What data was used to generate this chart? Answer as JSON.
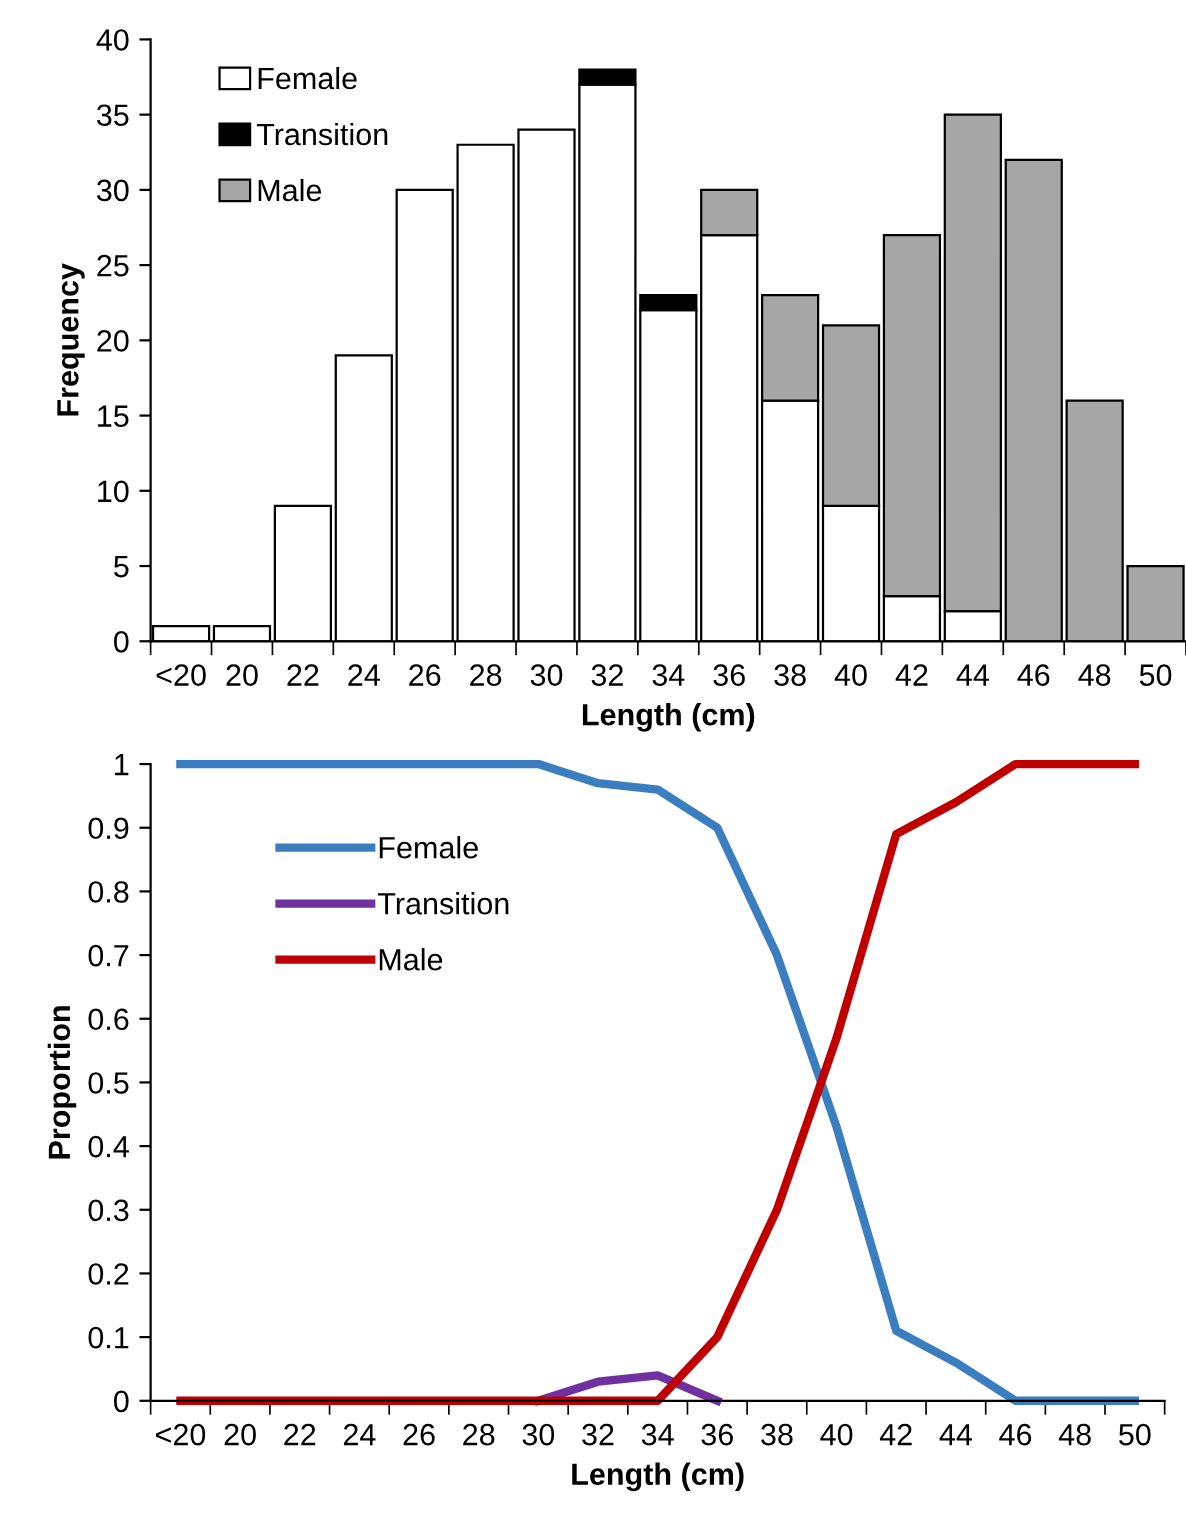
{
  "chart_data": [
    {
      "type": "bar",
      "stacked": true,
      "xlabel": "Length (cm)",
      "ylabel": "Frequency",
      "categories": [
        "<20",
        "20",
        "22",
        "24",
        "26",
        "28",
        "30",
        "32",
        "34",
        "36",
        "38",
        "40",
        "42",
        "44",
        "46",
        "48",
        "50"
      ],
      "ylim": [
        0,
        40
      ],
      "yticks": [
        0,
        5,
        10,
        15,
        20,
        25,
        30,
        35,
        40
      ],
      "grid": false,
      "legend": "top left",
      "series": [
        {
          "name": "Female",
          "color": "#ffffff",
          "values": [
            1,
            1,
            9,
            19,
            30,
            33,
            34,
            37,
            22,
            27,
            16,
            9,
            3,
            2,
            0,
            0,
            0
          ]
        },
        {
          "name": "Transition",
          "color": "#000000",
          "values": [
            0,
            0,
            0,
            0,
            0,
            0,
            0,
            1,
            1,
            0,
            0,
            0,
            0,
            0,
            0,
            0,
            0
          ]
        },
        {
          "name": "Male",
          "color": "#a6a6a6",
          "values": [
            0,
            0,
            0,
            0,
            0,
            0,
            0,
            0,
            0,
            3,
            7,
            12,
            24,
            33,
            32,
            16,
            5
          ]
        }
      ]
    },
    {
      "type": "line",
      "xlabel": "Length (cm)",
      "ylabel": "Proportion",
      "categories": [
        "<20",
        "20",
        "22",
        "24",
        "26",
        "28",
        "30",
        "32",
        "34",
        "36",
        "38",
        "40",
        "42",
        "44",
        "46",
        "48",
        "50"
      ],
      "ylim": [
        0,
        1
      ],
      "yticks": [
        0,
        0.1,
        0.2,
        0.3,
        0.4,
        0.5,
        0.6,
        0.7,
        0.8,
        0.9,
        1
      ],
      "grid": false,
      "legend": "top left",
      "marker": "none",
      "line_style": "solid",
      "series": [
        {
          "name": "Female",
          "color": "#3a7dc1",
          "values": [
            1,
            1,
            1,
            1,
            1,
            1,
            1,
            0.97,
            0.96,
            0.9,
            0.7,
            0.43,
            0.11,
            0.06,
            0,
            0,
            0
          ]
        },
        {
          "name": "Transition",
          "color": "#7030a0",
          "values": [
            null,
            null,
            null,
            null,
            null,
            null,
            0,
            0.03,
            0.04,
            0,
            null,
            null,
            null,
            null,
            null,
            null,
            null
          ]
        },
        {
          "name": "Male",
          "color": "#c00000",
          "values": [
            0,
            0,
            0,
            0,
            0,
            0,
            0,
            0,
            0,
            0.1,
            0.3,
            0.57,
            0.89,
            0.94,
            1,
            1,
            1
          ]
        }
      ]
    }
  ]
}
